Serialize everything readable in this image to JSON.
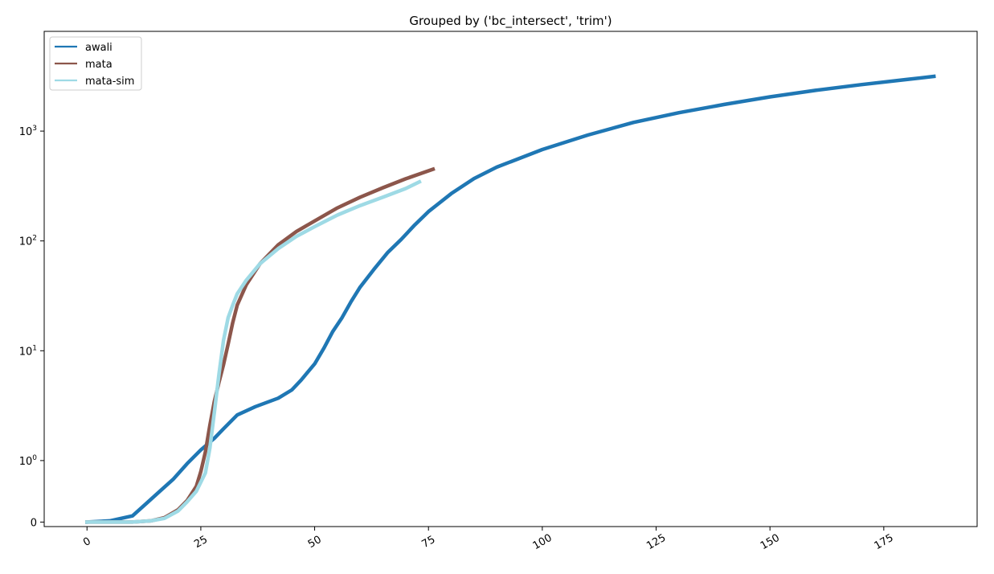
{
  "chart_data": {
    "type": "line",
    "title": "Grouped by ('bc_intersect', 'trim')",
    "xlabel": "",
    "ylabel": "",
    "xlim": [
      -9.4,
      195.5
    ],
    "x_ticks": [
      0,
      25,
      50,
      75,
      100,
      125,
      150,
      175
    ],
    "y_scale": "symlog",
    "y_ticks": [
      {
        "value": 0,
        "base": "0",
        "exp": ""
      },
      {
        "value": 1,
        "base": "10",
        "exp": "0"
      },
      {
        "value": 10,
        "base": "10",
        "exp": "1"
      },
      {
        "value": 100,
        "base": "10",
        "exp": "2"
      },
      {
        "value": 1000,
        "base": "10",
        "exp": "3"
      }
    ],
    "grid": false,
    "legend_position": "top-left",
    "series": [
      {
        "name": "awali",
        "color": "#1f77b4",
        "x": [
          0,
          5,
          10,
          13,
          16,
          19,
          22,
          25,
          28,
          30,
          33,
          37,
          42,
          45,
          47,
          50,
          52,
          54,
          56,
          58,
          60,
          63,
          66,
          69,
          72,
          75,
          80,
          85,
          90,
          100,
          110,
          120,
          130,
          140,
          150,
          160,
          170,
          180,
          186
        ],
        "y": [
          0,
          0.02,
          0.1,
          0.3,
          0.5,
          0.7,
          0.95,
          1.25,
          1.6,
          1.95,
          2.6,
          3.1,
          3.7,
          4.4,
          5.4,
          7.6,
          10.5,
          15,
          20,
          28,
          38,
          55,
          78,
          103,
          140,
          185,
          270,
          370,
          470,
          680,
          920,
          1200,
          1470,
          1750,
          2050,
          2350,
          2650,
          2950,
          3150
        ]
      },
      {
        "name": "mata",
        "color": "#8c564b",
        "x": [
          0,
          10,
          14,
          17,
          20,
          22,
          24,
          25,
          26,
          27,
          28,
          29,
          30,
          31,
          32,
          33,
          35,
          38,
          42,
          46,
          50,
          55,
          60,
          65,
          70,
          76
        ],
        "y": [
          0,
          0,
          0.02,
          0.07,
          0.2,
          0.35,
          0.58,
          0.82,
          1.2,
          2.1,
          3.5,
          5.2,
          7.5,
          11.5,
          18,
          26,
          40,
          62,
          92,
          122,
          152,
          200,
          250,
          305,
          368,
          450
        ]
      },
      {
        "name": "mata-sim",
        "color": "#9edae5",
        "x": [
          0,
          10,
          14,
          17,
          20,
          22,
          24,
          25,
          26,
          27,
          28,
          29,
          30,
          31,
          32,
          33,
          35,
          38,
          42,
          46,
          50,
          55,
          60,
          65,
          70,
          73
        ],
        "y": [
          0,
          0,
          0.02,
          0.06,
          0.18,
          0.33,
          0.5,
          0.65,
          0.8,
          1.3,
          2.8,
          6.2,
          12.5,
          20,
          26,
          33,
          44,
          62,
          85,
          110,
          135,
          172,
          210,
          250,
          300,
          345
        ]
      }
    ]
  }
}
